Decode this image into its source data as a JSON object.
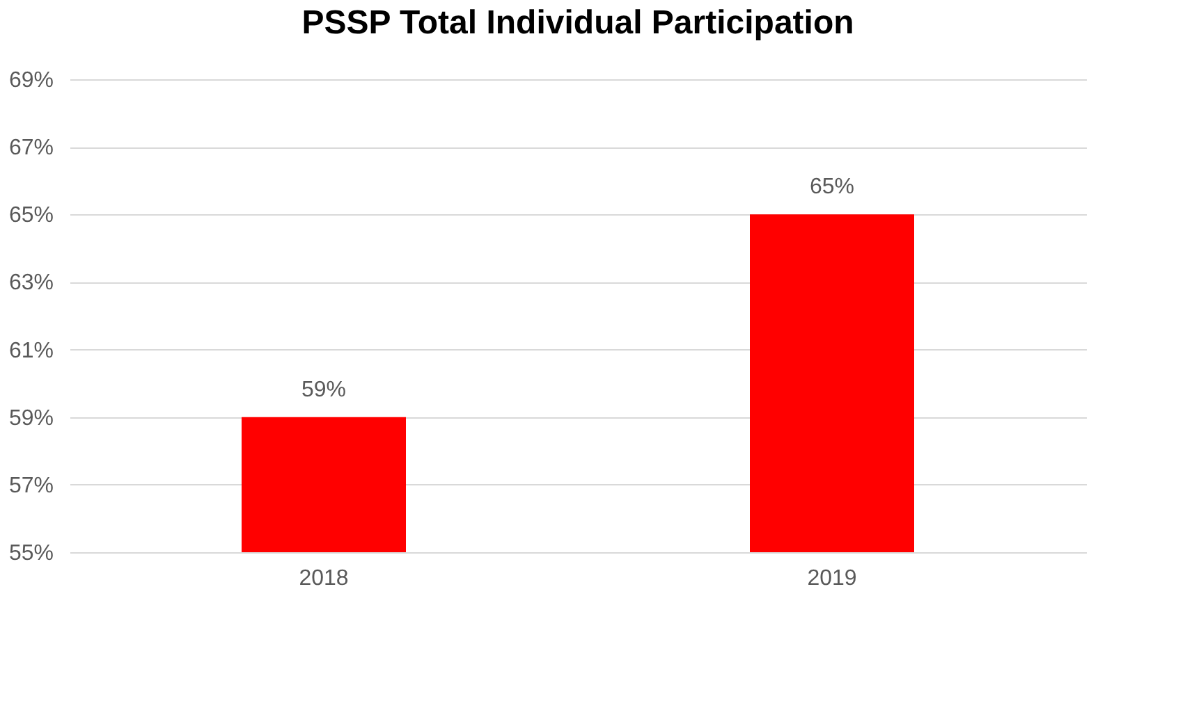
{
  "chart_data": {
    "type": "bar",
    "title": "PSSP Total Individual Participation",
    "categories": [
      "2018",
      "2019"
    ],
    "values": [
      59,
      65
    ],
    "value_labels": [
      "59%",
      "65%"
    ],
    "color": "#ff0000",
    "ylim": [
      55,
      69
    ],
    "yticks": [
      {
        "value": 55,
        "label": "55%"
      },
      {
        "value": 57,
        "label": "57%"
      },
      {
        "value": 59,
        "label": "59%"
      },
      {
        "value": 61,
        "label": "61%"
      },
      {
        "value": 63,
        "label": "63%"
      },
      {
        "value": 65,
        "label": "65%"
      },
      {
        "value": 67,
        "label": "67%"
      },
      {
        "value": 69,
        "label": "69%"
      }
    ],
    "grid": "y"
  }
}
